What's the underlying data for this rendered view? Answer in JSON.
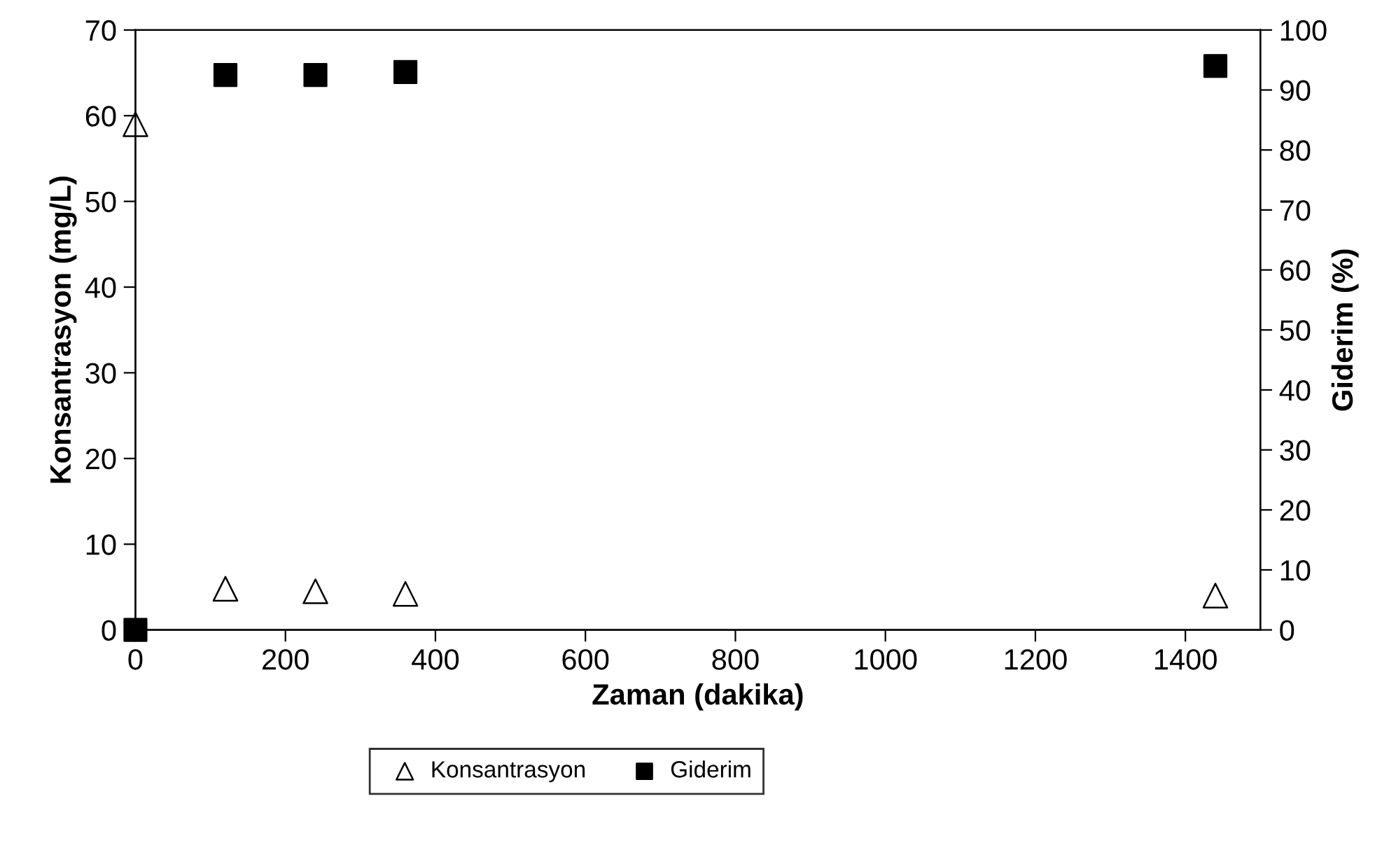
{
  "chart_data": {
    "type": "scatter",
    "xlabel": "Zaman (dakika)",
    "ylabel": "Konsantrasyon (mg/L)",
    "y2label": "Giderim (%)",
    "x": [
      0,
      120,
      240,
      360,
      1440
    ],
    "series": [
      {
        "name": "Konsantrasyon",
        "color": "#000000",
        "marker": "triangle",
        "values": [
          59,
          4.8,
          4.5,
          4.2,
          4.0
        ]
      },
      {
        "name": "Giderim",
        "color": "#000000",
        "marker": "square",
        "axis": "y2",
        "values": [
          0,
          92.5,
          92.5,
          93,
          94
        ]
      }
    ],
    "xlim": [
      0,
      1500
    ],
    "xticks": [
      0,
      200,
      400,
      600,
      800,
      1000,
      1200,
      1400
    ],
    "ylim": [
      0,
      70
    ],
    "yticks": [
      0,
      10,
      20,
      30,
      40,
      50,
      60,
      70
    ],
    "y2lim": [
      0,
      100
    ],
    "y2ticks": [
      0,
      10,
      20,
      30,
      40,
      50,
      60,
      70,
      80,
      90,
      100
    ],
    "grid": false,
    "legend": "bottom"
  }
}
